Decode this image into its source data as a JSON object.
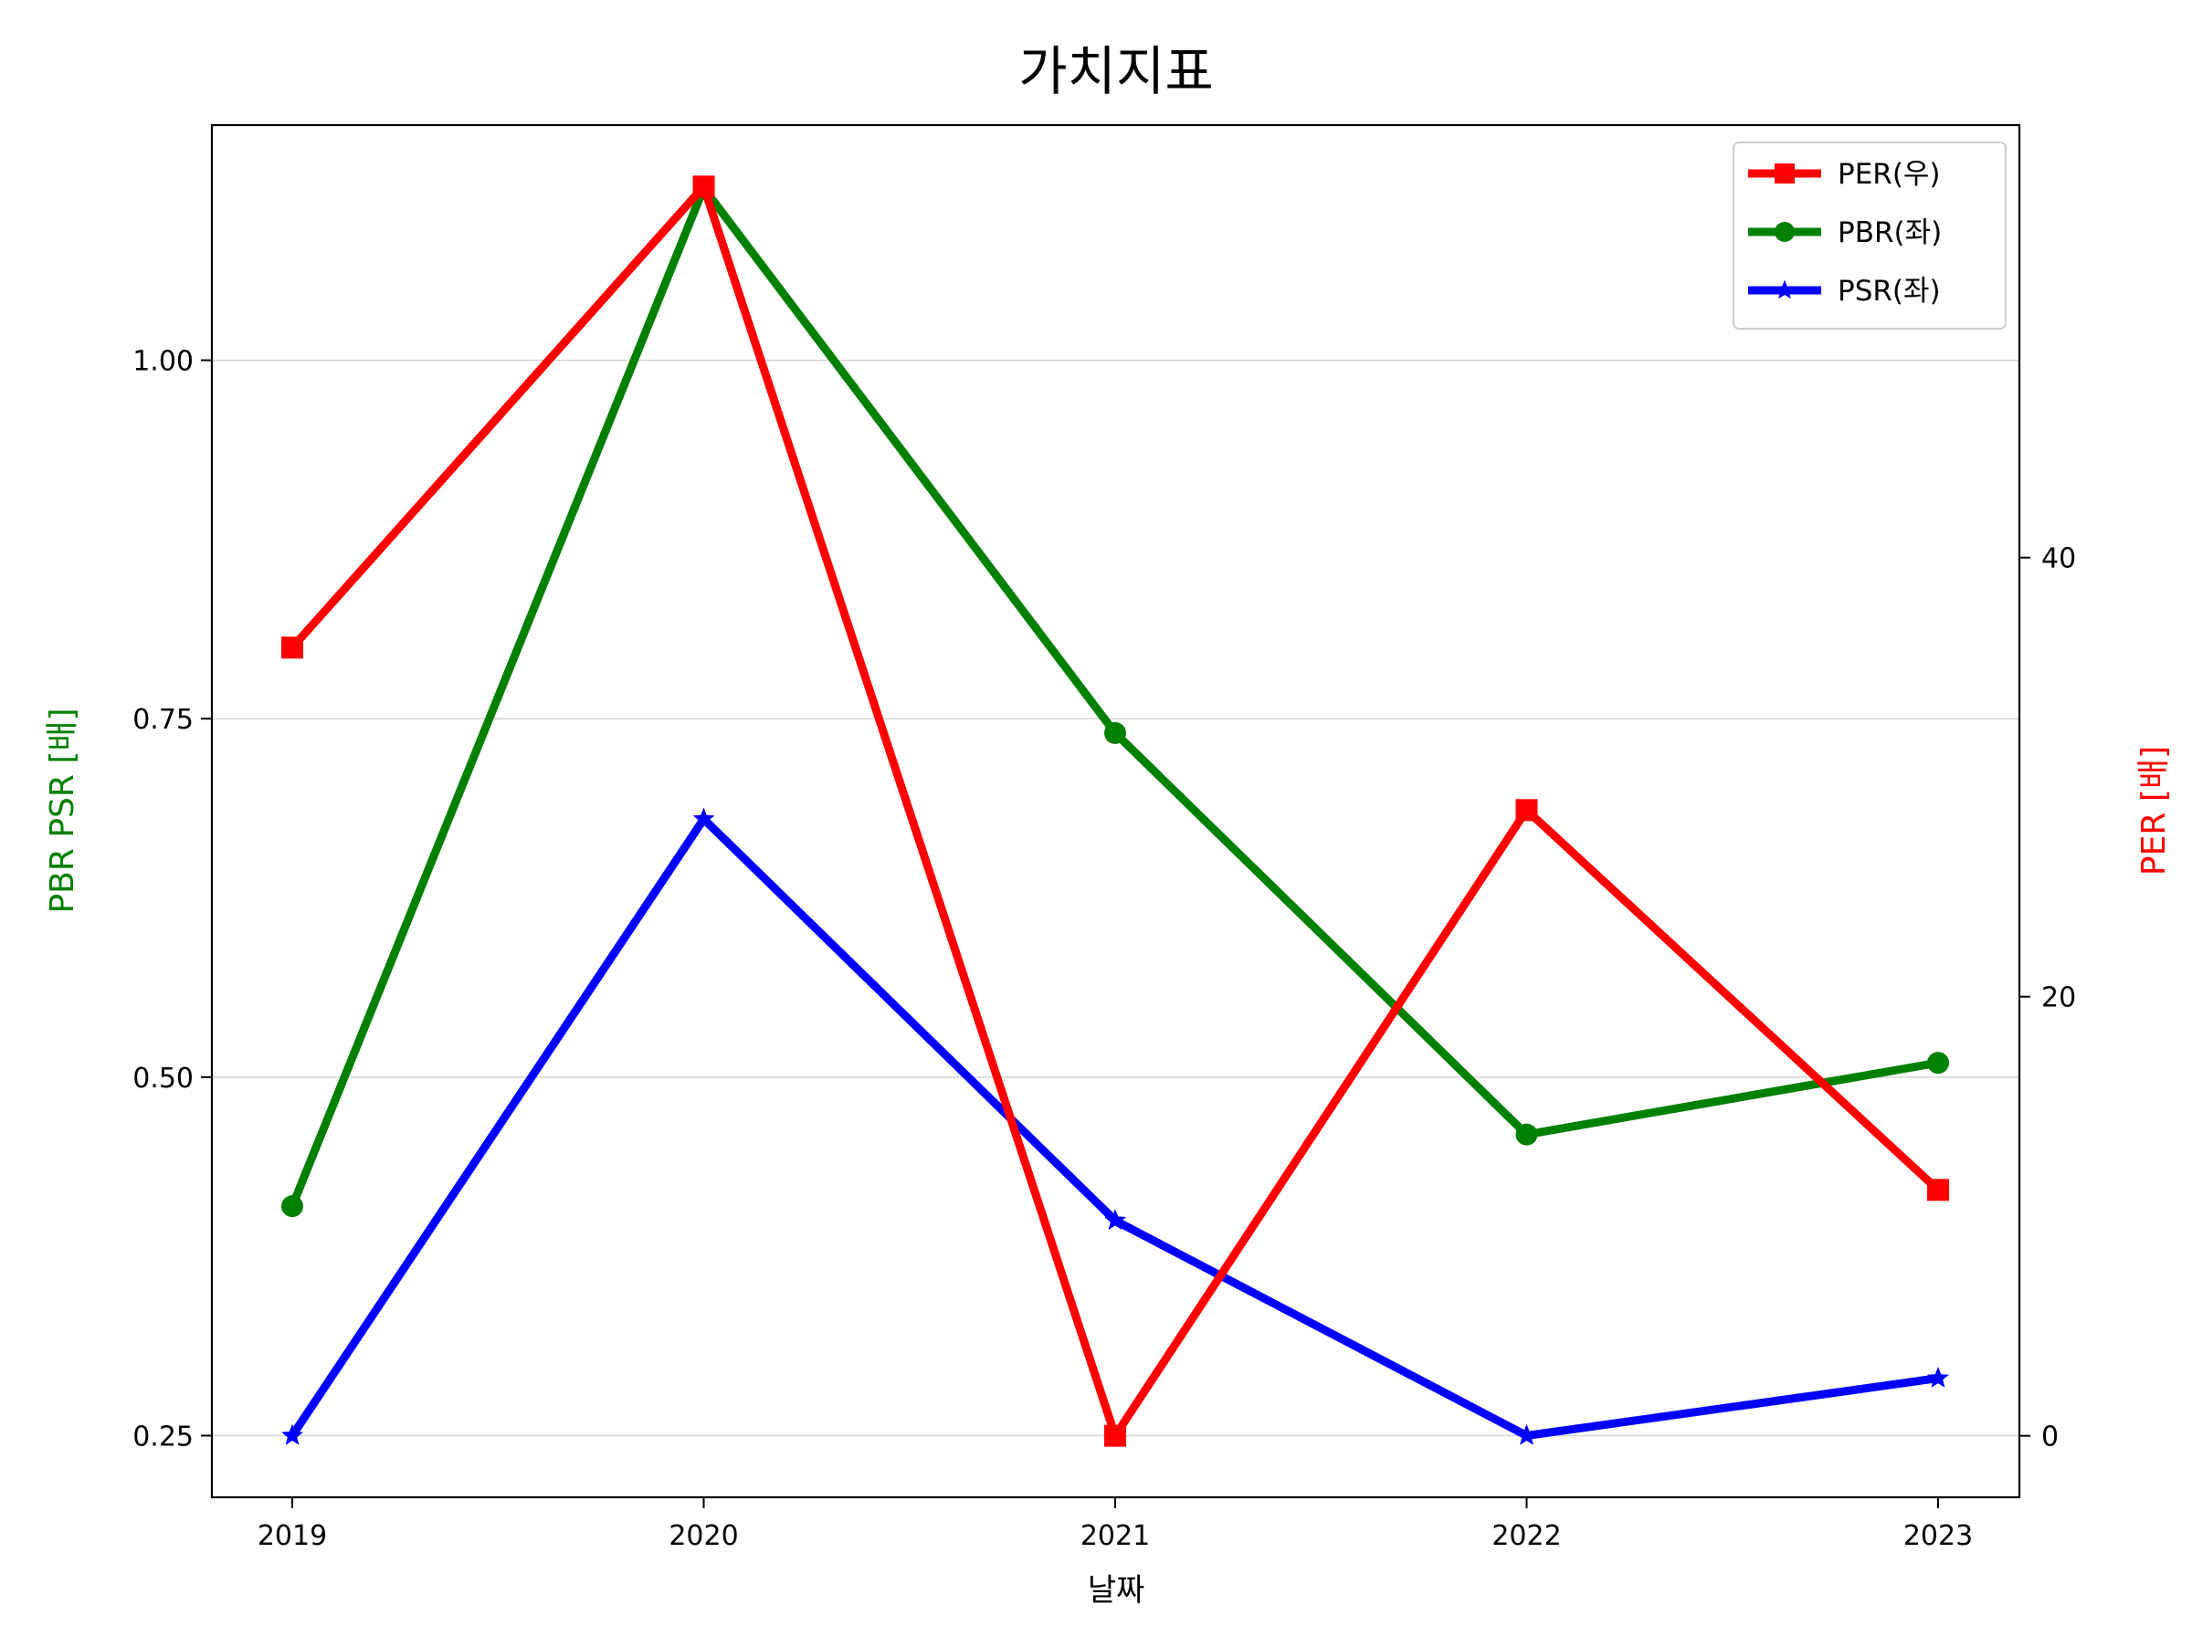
{
  "chart_data": {
    "type": "line",
    "title": "가치지표",
    "xlabel": "날짜",
    "ylabel_left": "PBR PSR [배]",
    "ylabel_right": "PER [배]",
    "categories": [
      "2019",
      "2020",
      "2021",
      "2022",
      "2023"
    ],
    "y_left": {
      "ylim": [
        0.207,
        1.164
      ],
      "ticks": [
        0.25,
        0.5,
        0.75,
        1.0
      ],
      "tick_labels": [
        "0.25",
        "0.50",
        "0.75",
        "1.00"
      ]
    },
    "y_right": {
      "ylim": [
        -2.8,
        59.7
      ],
      "ticks": [
        0,
        20,
        40
      ],
      "tick_labels": [
        "0",
        "20",
        "40"
      ]
    },
    "grid": true,
    "legend_position": "upper right",
    "series": [
      {
        "name": "PER(우)",
        "axis": "right",
        "color": "#ff0000",
        "marker": "square",
        "values": [
          35.9,
          56.9,
          0,
          28.5,
          11.2
        ]
      },
      {
        "name": "PBR(좌)",
        "axis": "left",
        "color": "#008000",
        "marker": "circle",
        "values": [
          0.41,
          1.12,
          0.74,
          0.46,
          0.51
        ]
      },
      {
        "name": "PSR(좌)",
        "axis": "left",
        "color": "#0000ff",
        "marker": "star",
        "values": [
          0.25,
          0.68,
          0.4,
          0.25,
          0.29
        ]
      }
    ]
  }
}
